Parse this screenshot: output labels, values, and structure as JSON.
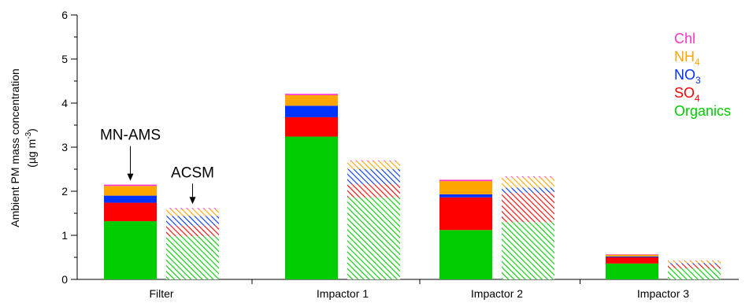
{
  "chart_data": {
    "type": "bar",
    "stacked": true,
    "ylabel": "Ambient PM mass concentration",
    "ylabel_unit": {
      "prefix": "(µg m",
      "superscript": "-3",
      "suffix": ")"
    },
    "ylim": [
      0,
      6
    ],
    "yticks": [
      "0",
      "1",
      "2",
      "3",
      "4",
      "5",
      "6"
    ],
    "grid": false,
    "legend_position": "top-right",
    "categories": [
      "Filter",
      "Impactor 1",
      "Impactor 2",
      "Impactor 3"
    ],
    "instruments": [
      {
        "label": "MN-AMS",
        "pattern": "solid"
      },
      {
        "label": "ACSM",
        "pattern": "hatched"
      }
    ],
    "components": [
      {
        "name": "Organics",
        "color": "#00cc00",
        "label": "Organics",
        "sub": ""
      },
      {
        "name": "SO4",
        "color": "#ff0000",
        "label": "SO",
        "sub": "4"
      },
      {
        "name": "NO3",
        "color": "#0033ff",
        "label": "NO",
        "sub": "3"
      },
      {
        "name": "NH4",
        "color": "#ffa500",
        "label": "NH",
        "sub": "4"
      },
      {
        "name": "Chl",
        "color": "#ff33cc",
        "label": "Chl",
        "sub": ""
      }
    ],
    "series": [
      {
        "instrument": "MN-AMS",
        "values": {
          "Organics": [
            1.32,
            3.24,
            1.12,
            0.36
          ],
          "SO4": [
            0.42,
            0.44,
            0.74,
            0.14
          ],
          "NO3": [
            0.16,
            0.26,
            0.07,
            0.02
          ],
          "NH4": [
            0.22,
            0.24,
            0.3,
            0.04
          ],
          "Chl": [
            0.03,
            0.03,
            0.03,
            0.01
          ]
        }
      },
      {
        "instrument": "ACSM",
        "values": {
          "Organics": [
            0.98,
            1.86,
            1.3,
            0.25
          ],
          "SO4": [
            0.24,
            0.3,
            0.66,
            0.09
          ],
          "NO3": [
            0.22,
            0.34,
            0.12,
            0.03
          ],
          "NH4": [
            0.15,
            0.18,
            0.23,
            0.05
          ],
          "Chl": [
            0.03,
            0.02,
            0.03,
            0.01
          ]
        }
      }
    ],
    "annotations": [
      {
        "text": "MN-AMS",
        "target_category": "Filter",
        "target_instrument": "MN-AMS"
      },
      {
        "text": "ACSM",
        "target_category": "Filter",
        "target_instrument": "ACSM"
      }
    ]
  }
}
